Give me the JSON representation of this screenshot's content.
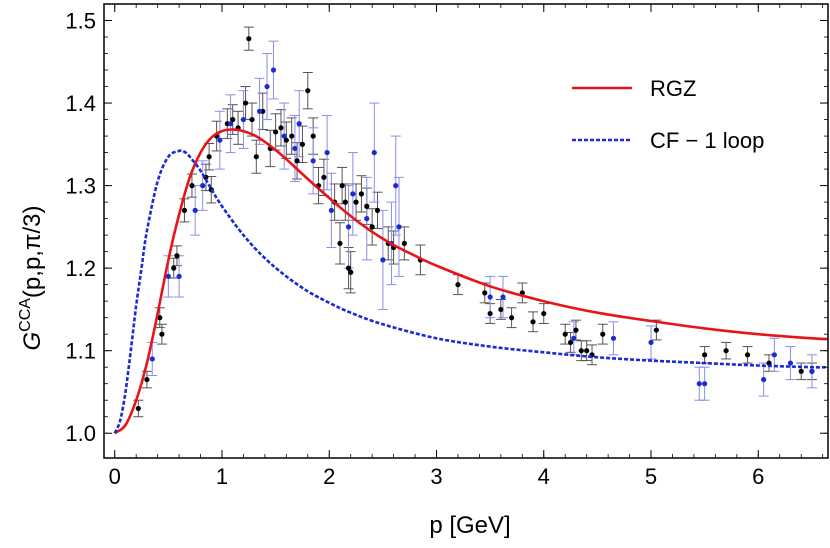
{
  "chart_data": {
    "type": "line",
    "xlabel": "p [GeV]",
    "ylabel": {
      "base": "G",
      "sup": "CCA",
      "args": "(p,p,π/3)"
    },
    "xlim": [
      -0.1,
      6.65
    ],
    "ylim": [
      0.97,
      1.52
    ],
    "x_ticks": [
      0,
      1,
      2,
      3,
      4,
      5,
      6
    ],
    "x_tick_labels": [
      "0",
      "1",
      "2",
      "3",
      "4",
      "5",
      "6"
    ],
    "y_ticks": [
      1.0,
      1.1,
      1.2,
      1.3,
      1.4,
      1.5
    ],
    "y_tick_labels": [
      "1.0",
      "1.1",
      "1.2",
      "1.3",
      "1.4",
      "1.5"
    ],
    "grid": false,
    "legend_position": "top-right",
    "series": [
      {
        "name": "RGZ",
        "color": "#e8141a",
        "style": "solid",
        "x": [
          0,
          0.1,
          0.2,
          0.3,
          0.4,
          0.5,
          0.6,
          0.7,
          0.8,
          0.9,
          1.0,
          1.1,
          1.2,
          1.3,
          1.4,
          1.5,
          1.6,
          1.8,
          2.0,
          2.2,
          2.4,
          2.6,
          2.8,
          3.0,
          3.5,
          4.0,
          4.5,
          5.0,
          5.5,
          6.0,
          6.5,
          6.65
        ],
        "y": [
          1.0,
          1.01,
          1.04,
          1.085,
          1.145,
          1.21,
          1.265,
          1.31,
          1.34,
          1.358,
          1.366,
          1.368,
          1.366,
          1.361,
          1.353,
          1.343,
          1.332,
          1.308,
          1.285,
          1.263,
          1.244,
          1.228,
          1.215,
          1.203,
          1.178,
          1.16,
          1.146,
          1.136,
          1.127,
          1.12,
          1.115,
          1.114
        ]
      },
      {
        "name": "CF − 1 loop",
        "color": "#1a2bd6",
        "style": "dashed",
        "x": [
          0,
          0.05,
          0.1,
          0.15,
          0.2,
          0.25,
          0.3,
          0.4,
          0.5,
          0.6,
          0.65,
          0.7,
          0.8,
          0.9,
          1.0,
          1.2,
          1.4,
          1.6,
          1.8,
          2.0,
          2.2,
          2.5,
          3.0,
          3.5,
          4.0,
          4.5,
          5.0,
          5.5,
          6.0,
          6.5,
          6.65
        ],
        "y": [
          1.0,
          1.015,
          1.05,
          1.1,
          1.155,
          1.2,
          1.245,
          1.305,
          1.335,
          1.342,
          1.341,
          1.335,
          1.318,
          1.296,
          1.275,
          1.24,
          1.212,
          1.19,
          1.172,
          1.158,
          1.146,
          1.132,
          1.115,
          1.105,
          1.098,
          1.092,
          1.088,
          1.085,
          1.082,
          1.08,
          1.08
        ]
      }
    ],
    "lattice_points": [
      {
        "color": "#000000",
        "bar_color": "#555555",
        "x": [
          0.22,
          0.3,
          0.42,
          0.44,
          0.55,
          0.58,
          0.65,
          0.72,
          0.85,
          0.88,
          0.9,
          0.95,
          1.05,
          1.1,
          1.15,
          1.22,
          1.25,
          1.28,
          1.32,
          1.38,
          1.45,
          1.5,
          1.55,
          1.6,
          1.65,
          1.7,
          1.75,
          1.8,
          1.85,
          1.9,
          1.95,
          2.05,
          2.1,
          2.12,
          2.15,
          2.18,
          2.2,
          2.25,
          2.3,
          2.35,
          2.4,
          2.45,
          2.55,
          2.6,
          2.7,
          2.85,
          3.2,
          3.45,
          3.5,
          3.6,
          3.7,
          3.8,
          3.9,
          4.0,
          4.2,
          4.25,
          4.3,
          4.35,
          4.4,
          4.45,
          4.55,
          5.05,
          5.5,
          5.7,
          5.9,
          6.1,
          6.4,
          6.5
        ],
        "y": [
          1.03,
          1.065,
          1.14,
          1.12,
          1.2,
          1.215,
          1.27,
          1.3,
          1.31,
          1.335,
          1.295,
          1.36,
          1.375,
          1.38,
          1.37,
          1.4,
          1.478,
          1.38,
          1.335,
          1.39,
          1.345,
          1.365,
          1.37,
          1.355,
          1.36,
          1.33,
          1.35,
          1.415,
          1.36,
          1.3,
          1.31,
          1.28,
          1.23,
          1.3,
          1.28,
          1.2,
          1.195,
          1.28,
          1.29,
          1.275,
          1.25,
          1.27,
          1.23,
          1.225,
          1.23,
          1.21,
          1.18,
          1.17,
          1.145,
          1.15,
          1.14,
          1.17,
          1.135,
          1.145,
          1.12,
          1.11,
          1.125,
          1.1,
          1.1,
          1.095,
          1.12,
          1.125,
          1.095,
          1.1,
          1.095,
          1.085,
          1.075,
          1.075
        ],
        "err": [
          0.01,
          0.01,
          0.012,
          0.012,
          0.012,
          0.012,
          0.014,
          0.014,
          0.016,
          0.016,
          0.016,
          0.018,
          0.018,
          0.018,
          0.02,
          0.02,
          0.014,
          0.02,
          0.02,
          0.022,
          0.022,
          0.022,
          0.022,
          0.022,
          0.022,
          0.022,
          0.022,
          0.022,
          0.022,
          0.022,
          0.022,
          0.022,
          0.025,
          0.022,
          0.022,
          0.025,
          0.025,
          0.022,
          0.022,
          0.022,
          0.022,
          0.022,
          0.02,
          0.02,
          0.02,
          0.018,
          0.012,
          0.012,
          0.012,
          0.012,
          0.012,
          0.012,
          0.012,
          0.012,
          0.012,
          0.012,
          0.012,
          0.012,
          0.012,
          0.012,
          0.012,
          0.012,
          0.01,
          0.01,
          0.01,
          0.01,
          0.01,
          0.01
        ]
      },
      {
        "color": "#1a2bd6",
        "bar_color": "#8a8ee8",
        "x": [
          0.35,
          0.5,
          0.6,
          0.75,
          0.82,
          0.98,
          1.08,
          1.2,
          1.35,
          1.42,
          1.48,
          1.58,
          1.68,
          1.72,
          1.85,
          1.98,
          2.02,
          2.18,
          2.22,
          2.35,
          2.42,
          2.5,
          2.58,
          2.62,
          2.65,
          3.5,
          3.62,
          4.28,
          4.65,
          5.0,
          5.45,
          5.5,
          6.05,
          6.15,
          6.3,
          6.5
        ],
        "y": [
          1.09,
          1.19,
          1.19,
          1.27,
          1.3,
          1.355,
          1.375,
          1.38,
          1.39,
          1.42,
          1.44,
          1.36,
          1.345,
          1.375,
          1.33,
          1.34,
          1.27,
          1.25,
          1.29,
          1.26,
          1.34,
          1.21,
          1.23,
          1.3,
          1.25,
          1.165,
          1.165,
          1.115,
          1.115,
          1.11,
          1.06,
          1.06,
          1.065,
          1.095,
          1.085,
          1.075
        ],
        "err": [
          0.02,
          0.025,
          0.025,
          0.03,
          0.03,
          0.035,
          0.035,
          0.035,
          0.04,
          0.04,
          0.035,
          0.04,
          0.04,
          0.04,
          0.04,
          0.045,
          0.045,
          0.05,
          0.05,
          0.05,
          0.06,
          0.06,
          0.05,
          0.06,
          0.06,
          0.025,
          0.025,
          0.02,
          0.02,
          0.02,
          0.02,
          0.02,
          0.02,
          0.02,
          0.02,
          0.02
        ]
      }
    ]
  }
}
